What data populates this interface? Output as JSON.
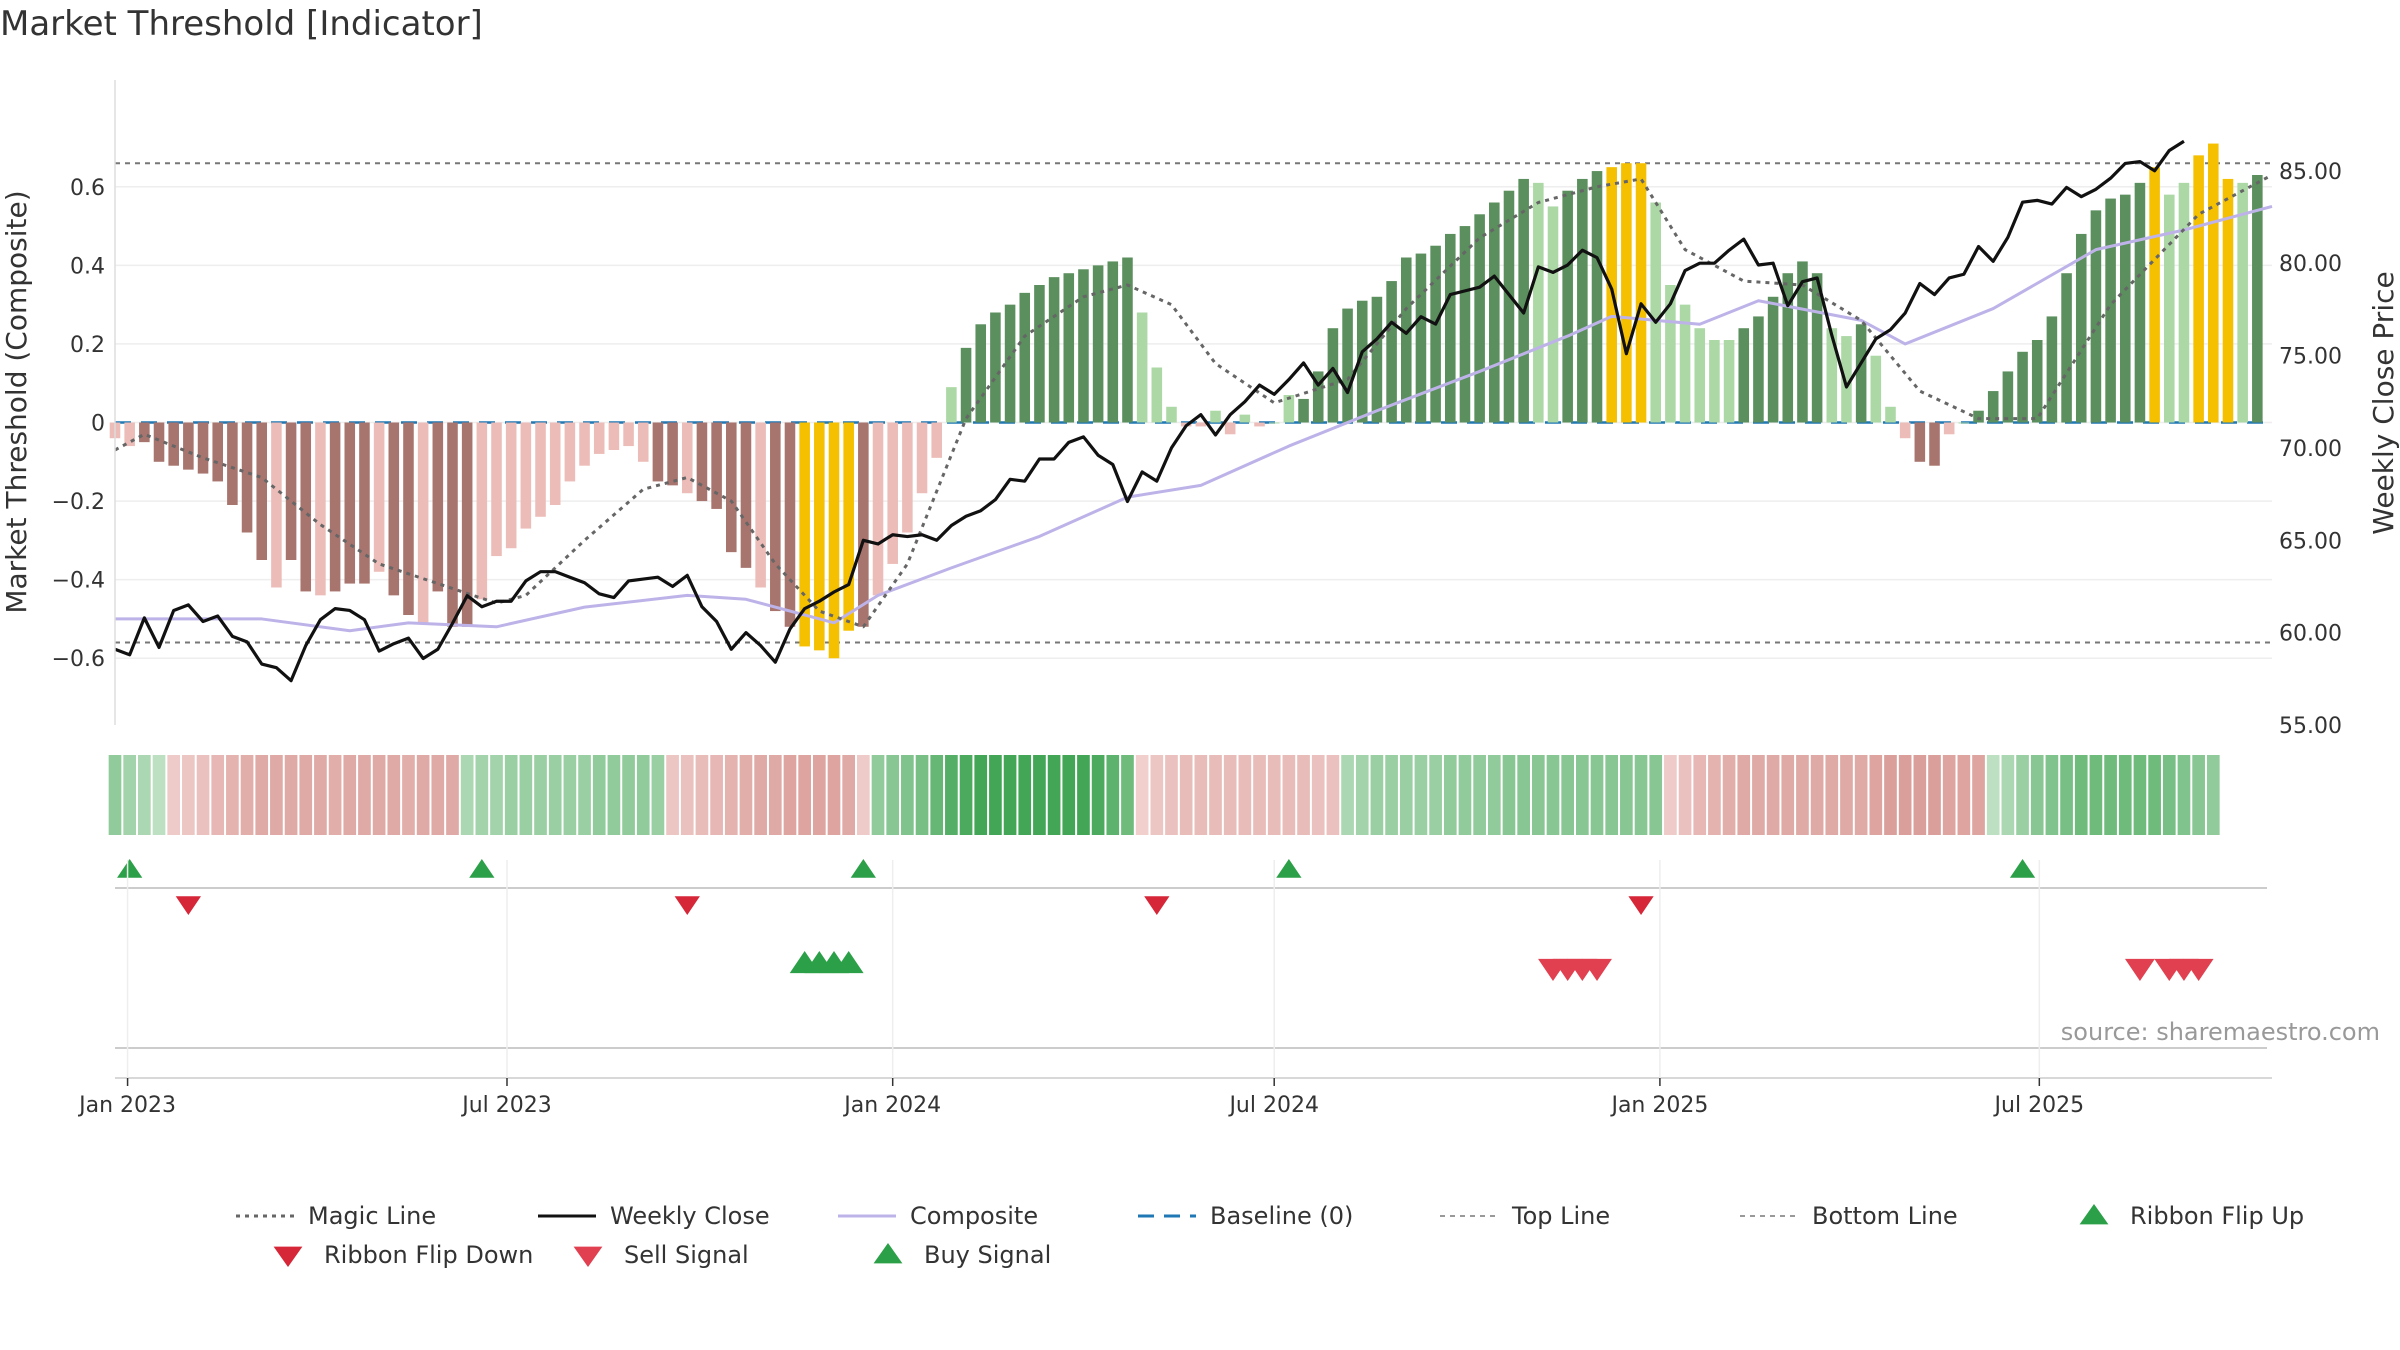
{
  "page": {
    "title": "Market Threshold [Indicator]",
    "source": "source: sharemaestro.com"
  },
  "colors": {
    "bar_dark_red": "#a8746e",
    "bar_light_red": "#ecbdb8",
    "bar_dark_green": "#5b8f5e",
    "bar_light_green": "#acd8a6",
    "bar_gold": "#f5c000",
    "weekly_close": "#111111",
    "composite": "#bdb3e8",
    "magic_line": "#666666",
    "baseline": "#1f77b4",
    "threshold_line": "#777777",
    "signal_green": "#2ca048",
    "signal_red": "#d62738",
    "grid": "#eeeeee"
  },
  "chart_data": {
    "type": "bar",
    "title": "Market Threshold [Indicator]",
    "left_axis": {
      "label": "Market Threshold (Composite)",
      "range": [
        -0.77,
        0.77
      ],
      "ticks": [
        -0.6,
        -0.4,
        -0.2,
        0,
        0.2,
        0.4,
        0.6
      ],
      "tick_labels": [
        "−0.6",
        "−0.4",
        "−0.2",
        "0",
        "0.2",
        "0.4",
        "0.6"
      ]
    },
    "right_axis": {
      "label": "Weekly Close Price",
      "range": [
        55.0,
        87.75
      ],
      "ticks": [
        55,
        60,
        65,
        70,
        75,
        80,
        85
      ],
      "tick_labels": [
        "55.00",
        "60.00",
        "65.00",
        "70.00",
        "75.00",
        "80.00",
        "85.00"
      ]
    },
    "x_axis": {
      "start": "2022-12-26",
      "end": "2025-10-20",
      "ticks": [
        "2023-01-01",
        "2023-07-01",
        "2024-01-01",
        "2024-07-01",
        "2025-01-01",
        "2025-07-01"
      ],
      "tick_labels": [
        "Jan 2023",
        "Jul 2023",
        "Jan 2024",
        "Jul 2024",
        "Jan 2025",
        "Jul 2025"
      ]
    },
    "thresholds": {
      "top": 0.66,
      "bottom": -0.56,
      "baseline": 0
    },
    "segments": [
      {
        "start": "2022-12-26",
        "values": [
          -0.04,
          -0.06,
          -0.05,
          -0.1,
          -0.11,
          -0.12,
          -0.13,
          -0.15,
          -0.21,
          -0.28,
          -0.35,
          -0.42,
          -0.35,
          -0.43,
          -0.44,
          -0.43,
          -0.41,
          -0.41,
          -0.38,
          -0.44,
          -0.49,
          -0.51,
          -0.43,
          -0.52,
          -0.52,
          -0.45,
          -0.34,
          -0.32,
          -0.27,
          -0.24,
          -0.21,
          -0.15,
          -0.11,
          -0.08,
          -0.07,
          -0.06,
          -0.1,
          -0.15,
          -0.16,
          -0.18,
          -0.2,
          -0.22,
          -0.33,
          -0.37,
          -0.42,
          -0.48,
          -0.52
        ],
        "styles": "LLDDDDDDDDDLDDLDDDLDDLDDDLLLLLLLLLLLLDDLDDDDLDD"
      },
      {
        "start": "2023-11-20",
        "values": [
          -0.57,
          -0.58,
          -0.6,
          -0.53,
          -0.52
        ],
        "styles": "GGGGD"
      },
      {
        "start": "2023-12-25",
        "values": [
          -0.44,
          -0.36,
          -0.28,
          -0.18,
          -0.09,
          0.09,
          0.19,
          0.25,
          0.28,
          0.3,
          0.33,
          0.35,
          0.37,
          0.38,
          0.39,
          0.4,
          0.41,
          0.42,
          0.28,
          0.14,
          0.04,
          -0.01,
          -0.01,
          0.03,
          -0.03,
          0.02,
          -0.01,
          0.0,
          0.07,
          0.06,
          0.13,
          0.24,
          0.29,
          0.31,
          0.32,
          0.36,
          0.42,
          0.43,
          0.45,
          0.48,
          0.5,
          0.53,
          0.56,
          0.59,
          0.62,
          0.61,
          0.55,
          0.59,
          0.62,
          0.64
        ],
        "styles": "LLLLLLDDDDDDDDDDDDLLLLLLLLLLLDDDDDDDDDDDDDDDDLLDDD"
      },
      {
        "start": "2024-12-09",
        "values": [
          0.65,
          0.66,
          0.66
        ],
        "styles": "GGG"
      },
      {
        "start": "2024-12-30",
        "values": [
          0.56,
          0.35,
          0.3,
          0.24,
          0.21,
          0.21,
          0.24,
          0.27,
          0.32,
          0.38,
          0.41,
          0.38,
          0.24,
          0.22,
          0.25,
          0.17,
          0.04,
          -0.04,
          -0.1,
          -0.11,
          -0.03,
          0.0,
          0.03,
          0.08,
          0.13,
          0.18,
          0.21,
          0.27,
          0.38,
          0.48,
          0.54,
          0.57,
          0.58,
          0.61
        ],
        "styles": "LLLLLLDDDDDDLLDLLLDDLLDDDDDDDDDDDD"
      },
      {
        "start": "2025-08-25",
        "values": [
          0.65
        ],
        "styles": "G"
      },
      {
        "start": "2025-09-01",
        "values": [
          0.58,
          0.61
        ],
        "styles": "LL"
      },
      {
        "start": "2025-09-15",
        "values": [
          0.68,
          0.71,
          0.62
        ],
        "styles": "GGG"
      },
      {
        "start": "2025-10-06",
        "values": [
          0.61,
          0.63
        ],
        "styles": "LD"
      }
    ],
    "magic_line": [
      [
        "2022-12-26",
        -0.07
      ],
      [
        "2023-01-09",
        -0.03
      ],
      [
        "2023-02-06",
        -0.09
      ],
      [
        "2023-03-06",
        -0.14
      ],
      [
        "2023-04-03",
        -0.26
      ],
      [
        "2023-05-01",
        -0.36
      ],
      [
        "2023-05-29",
        -0.41
      ],
      [
        "2023-06-26",
        -0.46
      ],
      [
        "2023-07-10",
        -0.44
      ],
      [
        "2023-08-07",
        -0.3
      ],
      [
        "2023-09-04",
        -0.17
      ],
      [
        "2023-09-25",
        -0.14
      ],
      [
        "2023-10-16",
        -0.2
      ],
      [
        "2023-11-06",
        -0.36
      ],
      [
        "2023-11-27",
        -0.48
      ],
      [
        "2023-12-18",
        -0.52
      ],
      [
        "2024-01-08",
        -0.36
      ],
      [
        "2024-02-05",
        0.01
      ],
      [
        "2024-03-04",
        0.22
      ],
      [
        "2024-04-01",
        0.32
      ],
      [
        "2024-04-22",
        0.35
      ],
      [
        "2024-05-13",
        0.3
      ],
      [
        "2024-06-03",
        0.15
      ],
      [
        "2024-07-01",
        0.05
      ],
      [
        "2024-08-05",
        0.11
      ],
      [
        "2024-09-02",
        0.29
      ],
      [
        "2024-10-07",
        0.47
      ],
      [
        "2024-11-04",
        0.56
      ],
      [
        "2024-12-02",
        0.6
      ],
      [
        "2024-12-23",
        0.62
      ],
      [
        "2025-01-13",
        0.44
      ],
      [
        "2025-02-10",
        0.36
      ],
      [
        "2025-03-10",
        0.35
      ],
      [
        "2025-04-07",
        0.26
      ],
      [
        "2025-05-05",
        0.08
      ],
      [
        "2025-06-02",
        0.01
      ],
      [
        "2025-06-30",
        0.01
      ],
      [
        "2025-08-04",
        0.3
      ],
      [
        "2025-09-15",
        0.53
      ],
      [
        "2025-10-20",
        0.63
      ]
    ],
    "weekly_close": {
      "start": "2022-12-26",
      "values": [
        59.1,
        58.8,
        60.8,
        59.2,
        61.2,
        61.5,
        60.6,
        60.9,
        59.8,
        59.5,
        58.3,
        58.1,
        57.4,
        59.3,
        60.7,
        61.3,
        61.2,
        60.7,
        59.0,
        59.4,
        59.7,
        58.6,
        59.1,
        60.5,
        62.0,
        61.4,
        61.7,
        61.7,
        62.8,
        63.3,
        63.3,
        63.0,
        62.7,
        62.1,
        61.9,
        62.8,
        62.9,
        63.0,
        62.5,
        63.1,
        61.4,
        60.6,
        59.1,
        60.0,
        59.3,
        58.4,
        60.2,
        61.3,
        61.7,
        62.2,
        62.6,
        65.0,
        64.8,
        65.3,
        65.2,
        65.3,
        65.0,
        65.8,
        66.3,
        66.6,
        67.2,
        68.3,
        68.2,
        69.4,
        69.4,
        70.3,
        70.6,
        69.6,
        69.1,
        67.1,
        68.7,
        68.2,
        70.0,
        71.2,
        71.8,
        70.7,
        71.8,
        72.5,
        73.4,
        72.9,
        73.7,
        74.6,
        73.4,
        74.3,
        73.0,
        75.2,
        75.9,
        76.8,
        76.2,
        77.1,
        76.7,
        78.3,
        78.5,
        78.7,
        79.3,
        78.3,
        77.3,
        79.8,
        79.5,
        79.9,
        80.7,
        80.3,
        78.6,
        75.1,
        77.8,
        76.8,
        77.8,
        79.6,
        80.0,
        80.0,
        80.7,
        81.3,
        79.9,
        80.0,
        77.7,
        79.0,
        79.2,
        76.1,
        73.3,
        74.6,
        75.9,
        76.4,
        77.3,
        78.9,
        78.3,
        79.2,
        79.4,
        80.9,
        80.1,
        81.4,
        83.3,
        83.4,
        83.2,
        84.1,
        83.6,
        84.0,
        84.6,
        85.4,
        85.5,
        85.0,
        86.1,
        86.6
      ]
    },
    "composite_line": [
      [
        "2022-12-26",
        -0.5
      ],
      [
        "2023-03-06",
        -0.5
      ],
      [
        "2023-04-17",
        -0.53
      ],
      [
        "2023-05-15",
        -0.51
      ],
      [
        "2023-06-26",
        -0.52
      ],
      [
        "2023-08-07",
        -0.47
      ],
      [
        "2023-09-25",
        -0.44
      ],
      [
        "2023-10-23",
        -0.45
      ],
      [
        "2023-12-04",
        -0.51
      ],
      [
        "2023-12-25",
        -0.44
      ],
      [
        "2024-01-29",
        -0.37
      ],
      [
        "2024-03-11",
        -0.29
      ],
      [
        "2024-04-22",
        -0.19
      ],
      [
        "2024-05-27",
        -0.16
      ],
      [
        "2024-07-08",
        -0.06
      ],
      [
        "2024-08-19",
        0.03
      ],
      [
        "2024-10-07",
        0.13
      ],
      [
        "2024-11-18",
        0.22
      ],
      [
        "2024-12-09",
        0.27
      ],
      [
        "2025-01-20",
        0.25
      ],
      [
        "2025-02-17",
        0.31
      ],
      [
        "2025-04-07",
        0.26
      ],
      [
        "2025-04-28",
        0.2
      ],
      [
        "2025-06-09",
        0.29
      ],
      [
        "2025-07-28",
        0.44
      ],
      [
        "2025-09-08",
        0.49
      ],
      [
        "2025-10-20",
        0.55
      ]
    ],
    "ribbon": {
      "start": "2022-12-26",
      "values": [
        0.5,
        0.4,
        0.35,
        0.25,
        -0.2,
        -0.25,
        -0.3,
        -0.4,
        -0.45,
        -0.5,
        -0.55,
        -0.55,
        -0.55,
        -0.55,
        -0.55,
        -0.5,
        -0.55,
        -0.55,
        -0.55,
        -0.55,
        -0.5,
        -0.55,
        -0.55,
        -0.55,
        0.35,
        0.4,
        0.4,
        0.45,
        0.45,
        0.45,
        0.45,
        0.45,
        0.45,
        0.5,
        0.5,
        0.5,
        0.5,
        0.45,
        -0.25,
        -0.3,
        -0.35,
        -0.4,
        -0.45,
        -0.5,
        -0.55,
        -0.55,
        -0.6,
        -0.6,
        -0.6,
        -0.6,
        -0.55,
        -0.2,
        0.5,
        0.55,
        0.6,
        0.65,
        0.75,
        0.85,
        0.9,
        0.95,
        0.95,
        0.95,
        0.95,
        0.95,
        0.95,
        0.95,
        0.95,
        0.9,
        0.8,
        0.7,
        -0.15,
        -0.25,
        -0.3,
        -0.35,
        -0.35,
        -0.35,
        -0.35,
        -0.35,
        -0.35,
        -0.35,
        -0.35,
        -0.35,
        -0.3,
        -0.3,
        0.35,
        0.4,
        0.45,
        0.45,
        0.45,
        0.45,
        0.45,
        0.5,
        0.5,
        0.5,
        0.5,
        0.55,
        0.55,
        0.55,
        0.55,
        0.55,
        0.55,
        0.55,
        0.55,
        0.55,
        0.55,
        0.55,
        -0.2,
        -0.3,
        -0.4,
        -0.45,
        -0.5,
        -0.55,
        -0.55,
        -0.55,
        -0.55,
        -0.55,
        -0.55,
        -0.55,
        -0.55,
        -0.55,
        -0.6,
        -0.65,
        -0.65,
        -0.65,
        -0.65,
        -0.6,
        -0.6,
        -0.6,
        0.25,
        0.35,
        0.45,
        0.55,
        0.6,
        0.65,
        0.7,
        0.7,
        0.7,
        0.7,
        0.7,
        0.7,
        0.65,
        0.6,
        0.55,
        0.5
      ]
    },
    "ribbon_flip_up": [
      "2023-01-02",
      "2023-06-19",
      "2023-12-18",
      "2024-07-08",
      "2025-06-23"
    ],
    "ribbon_flip_down": [
      "2023-01-30",
      "2023-09-25",
      "2024-05-06",
      "2024-12-23"
    ],
    "buy_signals": [
      "2023-11-20",
      "2023-11-27",
      "2023-12-04",
      "2023-12-11"
    ],
    "sell_signals": [
      "2024-11-11",
      "2024-11-18",
      "2024-11-25",
      "2024-12-02",
      "2025-08-18",
      "2025-09-01",
      "2025-09-08",
      "2025-09-15"
    ],
    "legend": {
      "position": "bottom",
      "items": [
        {
          "label": "Magic Line",
          "symbol": "dotted-line",
          "color": "#666666"
        },
        {
          "label": "Weekly Close",
          "symbol": "solid-line",
          "color": "#111111"
        },
        {
          "label": "Composite",
          "symbol": "solid-line",
          "color": "#bdb3e8"
        },
        {
          "label": "Baseline (0)",
          "symbol": "dashed-line",
          "color": "#1f77b4"
        },
        {
          "label": "Top Line",
          "symbol": "fine-dashed-line",
          "color": "#999999"
        },
        {
          "label": "Bottom Line",
          "symbol": "fine-dashed-line",
          "color": "#999999"
        },
        {
          "label": "Ribbon Flip Up",
          "symbol": "triangle-up",
          "color": "#2ca048"
        },
        {
          "label": "Ribbon Flip Down",
          "symbol": "triangle-down",
          "color": "#d62738"
        },
        {
          "label": "Sell Signal",
          "symbol": "triangle-down",
          "color": "#e04050"
        },
        {
          "label": "Buy Signal",
          "symbol": "triangle-up",
          "color": "#2ca048"
        }
      ]
    }
  }
}
